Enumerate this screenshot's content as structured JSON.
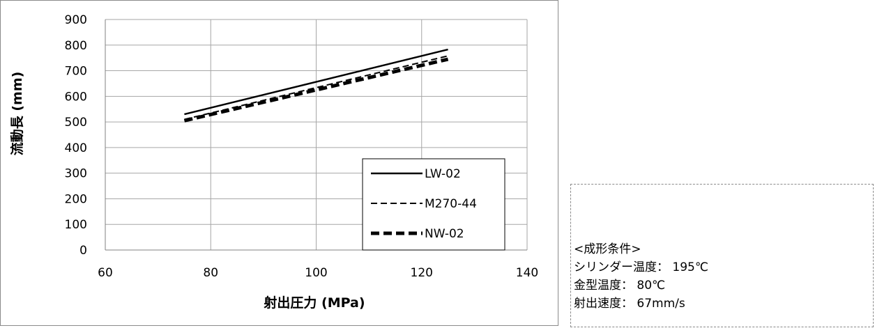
{
  "chart_data": {
    "type": "line",
    "xlabel": "射出圧力 (MPa)",
    "ylabel": "流動長 (mm)",
    "xlim": [
      60,
      140
    ],
    "ylim": [
      0,
      900
    ],
    "xticks": [
      60,
      80,
      100,
      120,
      140
    ],
    "yticks": [
      0,
      100,
      200,
      300,
      400,
      500,
      600,
      700,
      800,
      900
    ],
    "grid": true,
    "legend": "bottom-right",
    "series": [
      {
        "name": "LW-02",
        "style": "solid",
        "x": [
          75,
          125
        ],
        "y": [
          530,
          783
        ]
      },
      {
        "name": "M270-44",
        "style": "dashed",
        "x": [
          75,
          125
        ],
        "y": [
          510,
          758
        ]
      },
      {
        "name": "NW-02",
        "style": "bold-dashed",
        "x": [
          75,
          125
        ],
        "y": [
          505,
          745
        ]
      }
    ],
    "colors": {
      "series": "#000000",
      "grid": "#a6a6a6",
      "axis": "#808080"
    }
  },
  "conditions": {
    "title": "<成形条件>",
    "cylinder_temp": "シリンダー温度： 195℃",
    "mold_temp": "金型温度： 80℃",
    "injection_speed": "射出速度： 67mm/s"
  }
}
